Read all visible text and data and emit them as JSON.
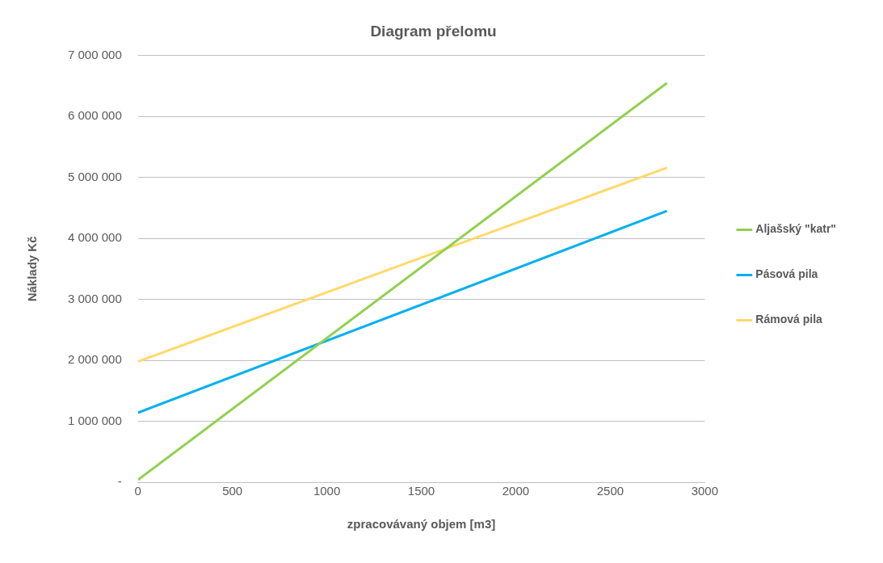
{
  "chart_data": {
    "type": "line",
    "title": "Diagram přelomu",
    "xlabel": "zpracovávaný objem [m3]",
    "ylabel": "Náklady Kč",
    "x": [
      0,
      2800
    ],
    "series": [
      {
        "name": "Aljašský \"katr\"",
        "color": "#92d050",
        "values": [
          40000,
          6550000
        ]
      },
      {
        "name": "Pásová pila",
        "color": "#00b0f0",
        "values": [
          1140000,
          4450000
        ]
      },
      {
        "name": "Rámová pila",
        "color": "#ffd966",
        "values": [
          1980000,
          5160000
        ]
      }
    ],
    "xlim": [
      0,
      3000
    ],
    "xticks": [
      0,
      500,
      1000,
      1500,
      2000,
      2500,
      3000
    ],
    "ylim": [
      0,
      7000000
    ],
    "yticks": [
      {
        "value": 0,
        "label": "-"
      },
      {
        "value": 1000000,
        "label": "1 000 000"
      },
      {
        "value": 2000000,
        "label": "2 000 000"
      },
      {
        "value": 3000000,
        "label": "3 000 000"
      },
      {
        "value": 4000000,
        "label": "4 000 000"
      },
      {
        "value": 5000000,
        "label": "5 000 000"
      },
      {
        "value": 6000000,
        "label": "6 000 000"
      },
      {
        "value": 7000000,
        "label": "7 000 000"
      }
    ],
    "grid": "y",
    "legend": "right",
    "marker": "none",
    "line_style": "solid"
  }
}
